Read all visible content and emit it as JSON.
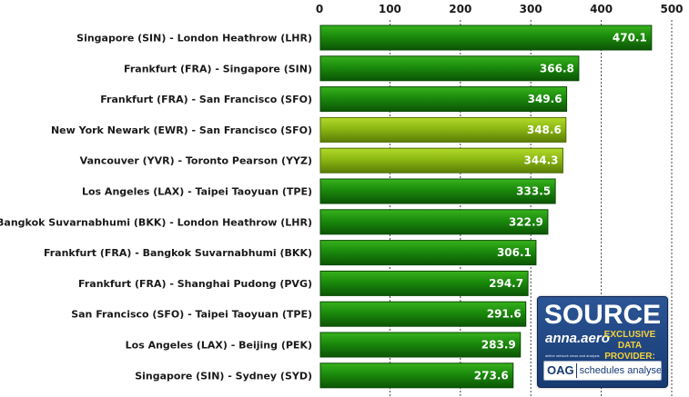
{
  "chart_data": {
    "type": "bar",
    "orientation": "horizontal",
    "x_ticks": [
      0,
      100,
      200,
      300,
      400,
      500
    ],
    "xlim": [
      0,
      500
    ],
    "grid": true,
    "categories": [
      "Singapore (SIN) - London Heathrow (LHR)",
      "Frankfurt (FRA) - Singapore (SIN)",
      "Frankfurt (FRA) - San Francisco (SFO)",
      "New York Newark (EWR) - San Francisco (SFO)",
      "Vancouver (YVR) - Toronto Pearson (YYZ)",
      "Los Angeles (LAX) - Taipei Taoyuan (TPE)",
      "Bangkok Suvarnabhumi (BKK) - London Heathrow (LHR)",
      "Frankfurt (FRA) - Bangkok Suvarnabhumi (BKK)",
      "Frankfurt (FRA) - Shanghai Pudong (PVG)",
      "San Francisco (SFO) - Taipei Taoyuan (TPE)",
      "Los Angeles (LAX) - Beijing (PEK)",
      "Singapore (SIN) - Sydney (SYD)"
    ],
    "values": [
      470.1,
      366.8,
      349.6,
      348.6,
      344.3,
      333.5,
      322.9,
      306.1,
      294.7,
      291.6,
      283.9,
      273.6
    ],
    "value_labels": [
      "470.1",
      "366.8",
      "349.6",
      "348.6",
      "344.3",
      "333.5",
      "322.9",
      "306.1",
      "294.7",
      "291.6",
      "283.9",
      "273.6"
    ],
    "highlighted": [
      false,
      false,
      false,
      true,
      true,
      false,
      false,
      false,
      false,
      false,
      false,
      false
    ],
    "colors": {
      "bar": "#1e8a0e",
      "bar_highlight": "#8cb813",
      "grid": "#444444"
    }
  },
  "source_box": {
    "title": "SOURCE",
    "logo_text": "anna.aero",
    "logo_tagline": "airline network news and analysis",
    "exclusive_line1": "EXCLUSIVE",
    "exclusive_line2": "DATA PROVIDER:",
    "oag_mark": "OAG",
    "oag_text": "schedules analyser"
  }
}
